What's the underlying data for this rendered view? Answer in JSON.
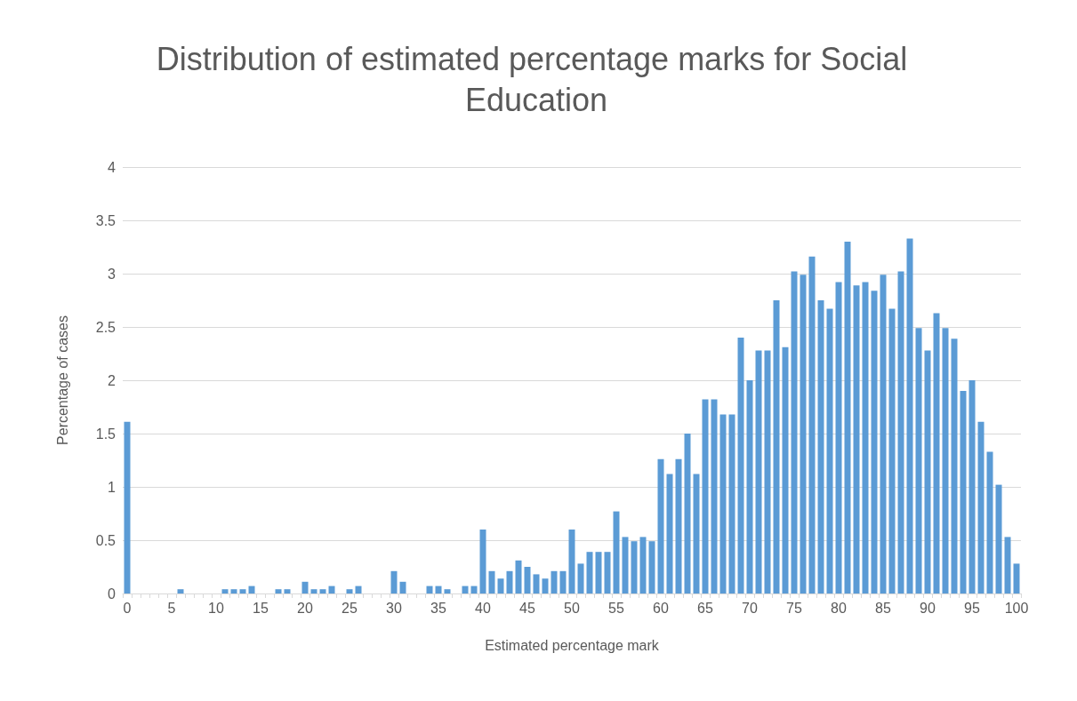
{
  "chart_data": {
    "type": "bar",
    "title": "Distribution of estimated percentage marks for Social Education",
    "xlabel": "Estimated percentage mark",
    "ylabel": "Percentage of cases",
    "categories": [
      "0",
      null,
      null,
      null,
      null,
      "5",
      null,
      null,
      null,
      null,
      "10",
      null,
      null,
      null,
      null,
      "15",
      null,
      null,
      null,
      null,
      "20",
      null,
      null,
      null,
      null,
      "25",
      null,
      null,
      null,
      null,
      "30",
      null,
      null,
      null,
      null,
      "35",
      null,
      null,
      null,
      null,
      "40",
      null,
      null,
      null,
      null,
      "45",
      null,
      null,
      null,
      null,
      "50",
      null,
      null,
      null,
      null,
      "55",
      null,
      null,
      null,
      null,
      "60",
      null,
      null,
      null,
      null,
      "65",
      null,
      null,
      null,
      null,
      "70",
      null,
      null,
      null,
      null,
      "75",
      null,
      null,
      null,
      null,
      "80",
      null,
      null,
      null,
      null,
      "85",
      null,
      null,
      null,
      null,
      "90",
      null,
      null,
      null,
      null,
      "95",
      null,
      null,
      null,
      null,
      "100"
    ],
    "values": [
      1.61,
      0,
      0,
      0,
      0,
      0,
      0.04,
      0,
      0,
      0,
      0,
      0.04,
      0.04,
      0.04,
      0.07,
      0,
      0,
      0.04,
      0.04,
      0,
      0.11,
      0.04,
      0.04,
      0.07,
      0,
      0.04,
      0.07,
      0,
      0,
      0,
      0.21,
      0.11,
      0,
      0,
      0.07,
      0.07,
      0.04,
      0,
      0.07,
      0.07,
      0.6,
      0.21,
      0.14,
      0.21,
      0.31,
      0.25,
      0.18,
      0.14,
      0.21,
      0.21,
      0.6,
      0.28,
      0.39,
      0.39,
      0.39,
      0.77,
      0.53,
      0.49,
      0.53,
      0.49,
      1.26,
      1.12,
      1.26,
      1.5,
      1.12,
      1.82,
      1.82,
      1.68,
      1.68,
      2.4,
      2.0,
      2.28,
      2.28,
      2.75,
      2.31,
      3.02,
      2.99,
      3.16,
      2.75,
      2.67,
      2.92,
      3.3,
      2.89,
      2.92,
      2.84,
      2.99,
      2.67,
      3.02,
      3.33,
      2.49,
      2.28,
      2.63,
      2.49,
      2.39,
      1.9,
      2.0,
      1.61,
      1.33,
      1.02,
      0.53,
      0.28
    ],
    "color": "#5b9bd5",
    "ylim": [
      0,
      4
    ],
    "yticks": [
      0,
      0.5,
      1,
      1.5,
      2,
      2.5,
      3,
      3.5,
      4
    ],
    "grid": "y"
  }
}
